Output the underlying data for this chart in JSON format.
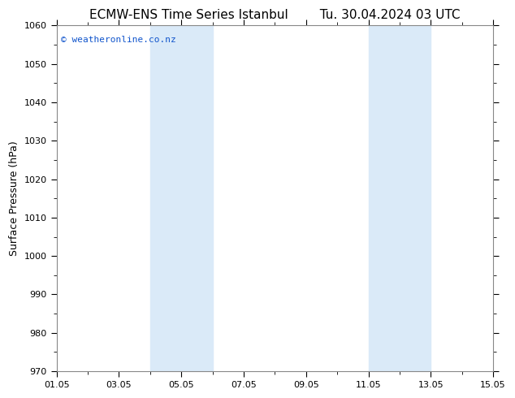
{
  "title": "ECMW-ENS Time Series Istanbul        Tu. 30.04.2024 03 UTC",
  "ylabel": "Surface Pressure (hPa)",
  "ylim": [
    970,
    1060
  ],
  "yticks": [
    970,
    980,
    990,
    1000,
    1010,
    1020,
    1030,
    1040,
    1050,
    1060
  ],
  "xlim": [
    0,
    14
  ],
  "xtick_positions": [
    0,
    2,
    4,
    6,
    8,
    10,
    12,
    14
  ],
  "xtick_labels": [
    "01.05",
    "03.05",
    "05.05",
    "07.05",
    "09.05",
    "11.05",
    "13.05",
    "15.05"
  ],
  "shaded_bands": [
    {
      "xmin": 3.0,
      "xmax": 5.0
    },
    {
      "xmin": 10.0,
      "xmax": 12.0
    }
  ],
  "band_color": "#daeaf8",
  "background_color": "#ffffff",
  "plot_bg_color": "#ffffff",
  "watermark_text": "© weatheronline.co.nz",
  "watermark_color": "#1155cc",
  "title_fontsize": 11,
  "label_fontsize": 9,
  "tick_fontsize": 8,
  "watermark_fontsize": 8
}
